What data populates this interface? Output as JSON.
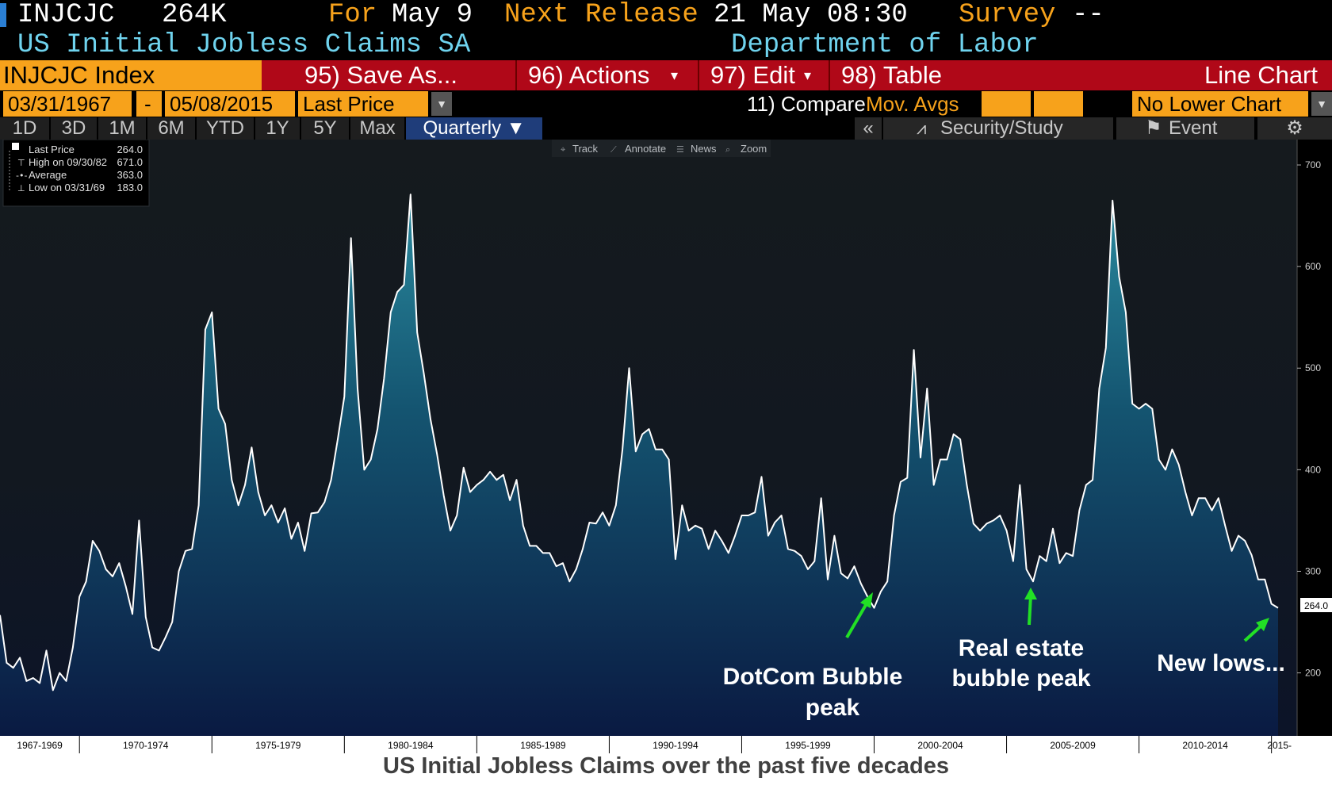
{
  "header": {
    "ticker": "INJCJC",
    "last_value": "264K",
    "for_label": "For",
    "for_date": "May 9",
    "next_release_label": "Next Release",
    "next_release_time": "21 May 08:30",
    "survey_label": "Survey",
    "survey_value": "--",
    "series_name": "US Initial Jobless Claims SA",
    "source": "Department of Labor"
  },
  "toolbar": {
    "index_label": "INJCJC Index",
    "buttons": [
      "95) Save As...",
      "96) Actions",
      "97) Edit",
      "98) Table"
    ],
    "chart_type": "Line Chart",
    "start_date": "03/31/1967",
    "dash": "-",
    "end_date": "05/08/2015",
    "field": "Last Price",
    "compare": "11) Compare",
    "mov_avgs": "Mov. Avgs",
    "lower_chart": "No Lower Chart",
    "periods": [
      "1D",
      "3D",
      "1M",
      "6M",
      "YTD",
      "1Y",
      "5Y",
      "Max",
      "Quarterly ▼"
    ],
    "tools": [
      "«",
      "Security/Study",
      "Event",
      "⚙"
    ],
    "mini_tools": [
      "Track",
      "Annotate",
      "News",
      "Zoom"
    ]
  },
  "legend": {
    "rows": [
      {
        "label": "Last Price",
        "value": "264.0"
      },
      {
        "label": "High on 09/30/82",
        "value": "671.0"
      },
      {
        "label": "Average",
        "value": "363.0"
      },
      {
        "label": "Low on 03/31/69",
        "value": "183.0"
      }
    ]
  },
  "chart_data": {
    "type": "area",
    "x_tick_labels": [
      "1967-1969",
      "1970-1974",
      "1975-1979",
      "1980-1984",
      "1985-1989",
      "1990-1994",
      "1995-1999",
      "2000-2004",
      "2005-2009",
      "2010-2014",
      "2015-"
    ],
    "y_ticks": [
      200,
      300,
      400,
      500,
      600,
      700
    ],
    "ylim": [
      138,
      725
    ],
    "last_label": "264.0",
    "frequency": "Quarterly",
    "series": [
      {
        "values": [
          257,
          210,
          205,
          215,
          192,
          195,
          190,
          222,
          183,
          200,
          192,
          225,
          275,
          290,
          330,
          320,
          302,
          295,
          308,
          285,
          258,
          350,
          255,
          225,
          222,
          235,
          250,
          300,
          320,
          322,
          365,
          538,
          555,
          460,
          445,
          390,
          365,
          385,
          422,
          378,
          355,
          365,
          348,
          362,
          332,
          348,
          320,
          357,
          358,
          368,
          390,
          430,
          472,
          628,
          480,
          400,
          410,
          440,
          490,
          555,
          575,
          582,
          671,
          535,
          495,
          450,
          415,
          375,
          340,
          355,
          402,
          378,
          385,
          390,
          398,
          390,
          395,
          370,
          390,
          345,
          325,
          325,
          318,
          318,
          305,
          308,
          290,
          302,
          322,
          348,
          347,
          358,
          345,
          365,
          420,
          500,
          418,
          435,
          440,
          420,
          420,
          410,
          312,
          365,
          340,
          345,
          342,
          322,
          340,
          330,
          318,
          335,
          355,
          355,
          358,
          393,
          335,
          348,
          355,
          322,
          320,
          315,
          302,
          310,
          372,
          292,
          335,
          298,
          293,
          305,
          288,
          275,
          264,
          280,
          290,
          355,
          388,
          392,
          518,
          412,
          480,
          385,
          410,
          410,
          435,
          430,
          385,
          347,
          340,
          347,
          350,
          355,
          340,
          310,
          385,
          302,
          290,
          315,
          310,
          342,
          308,
          318,
          315,
          360,
          385,
          390,
          480,
          520,
          665,
          590,
          555,
          465,
          460,
          465,
          460,
          410,
          400,
          420,
          405,
          378,
          355,
          372,
          372,
          360,
          372,
          345,
          320,
          335,
          330,
          316,
          292,
          292,
          268,
          264
        ]
      }
    ],
    "annotations": [
      {
        "lines": [
          "DotCom Bubble",
          "peak"
        ]
      },
      {
        "lines": [
          "Real estate",
          "bubble peak"
        ]
      },
      {
        "lines": [
          "New lows..."
        ]
      }
    ],
    "caption": "US Initial Jobless Claims over the past five decades"
  }
}
